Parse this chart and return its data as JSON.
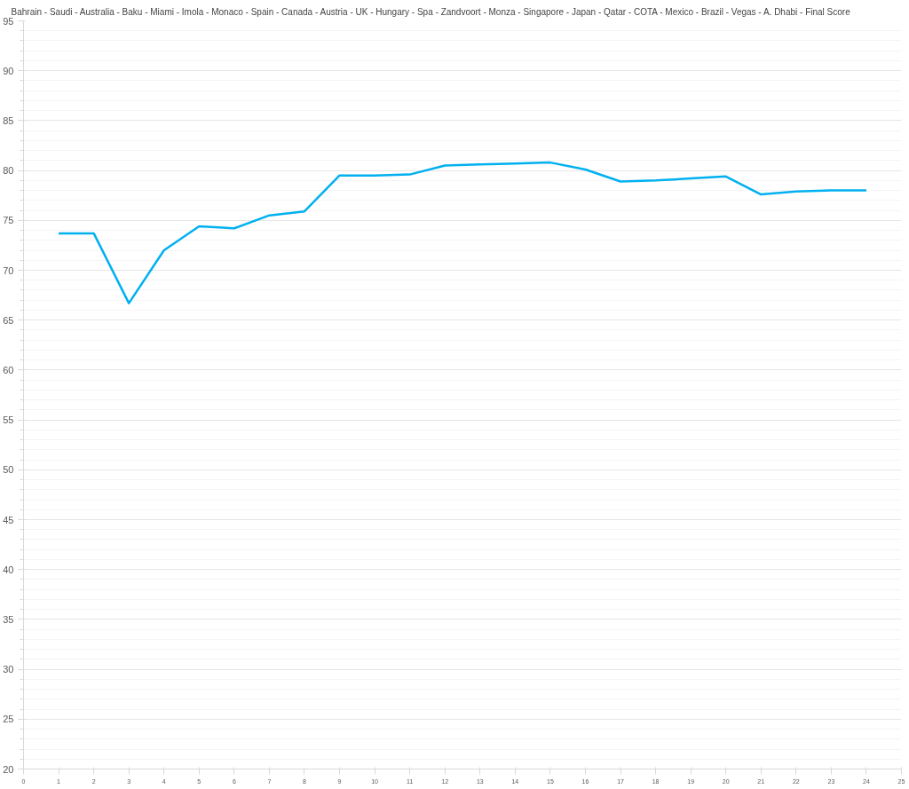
{
  "chart_data": {
    "type": "line",
    "title": "Bahrain - Saudi - Australia -   Baku   -  Miami  - Imola - Monaco -  Spain  - Canada -  Austria  -  UK  - Hungary -  Spa  - Zandvoort - Monza - Singapore - Japan -  Qatar  - COTA - Mexico -   Brazil   - Vegas - A. Dhabi - Final Score",
    "x": [
      1,
      2,
      3,
      4,
      5,
      6,
      7,
      8,
      9,
      10,
      11,
      12,
      13,
      14,
      15,
      16,
      17,
      18,
      19,
      20,
      21,
      22,
      23,
      24
    ],
    "series": [
      {
        "color": "#00b0f0",
        "values": [
          73.7,
          73.7,
          66.7,
          72.0,
          74.4,
          74.2,
          75.5,
          75.9,
          79.5,
          79.5,
          79.6,
          80.5,
          80.6,
          80.7,
          80.8,
          80.1,
          78.9,
          79.0,
          79.2,
          79.4,
          77.6,
          77.9,
          78.0,
          78.0
        ]
      }
    ],
    "xlim": [
      0,
      25
    ],
    "xticks": [
      0,
      1,
      2,
      3,
      4,
      5,
      6,
      7,
      8,
      9,
      10,
      11,
      12,
      13,
      14,
      15,
      16,
      17,
      18,
      19,
      20,
      21,
      22,
      23,
      24,
      25
    ],
    "ylim": [
      20,
      95
    ],
    "yticks": [
      20,
      25,
      30,
      35,
      40,
      45,
      50,
      55,
      60,
      65,
      70,
      75,
      80,
      85,
      90,
      95
    ],
    "grid": "y",
    "marker": "none",
    "line_style": "solid"
  }
}
